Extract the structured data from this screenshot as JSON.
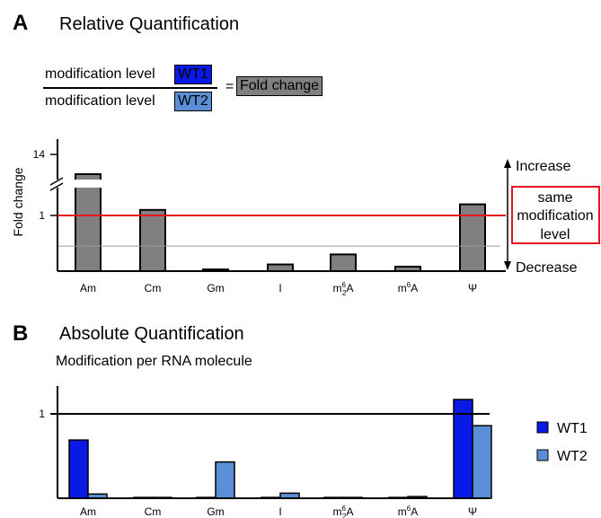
{
  "colors": {
    "wt1": "#0a1ae6",
    "wt2": "#5a8fd8",
    "grey": "#808080",
    "red": "#e8141e"
  },
  "panel_a": {
    "letter": "A",
    "title": "Relative Quantification",
    "formula": {
      "numerator_text": "modification level",
      "numerator_box": "WT1",
      "denominator_text": "modification level",
      "denominator_box": "WT2",
      "equals": "=",
      "result_box": "Fold change"
    },
    "ylabel": "Fold change",
    "increase_label": "Increase",
    "decrease_label": "Decrease",
    "same_level_lines": [
      "same",
      "modification",
      "level"
    ]
  },
  "panel_b": {
    "letter": "B",
    "title": "Absolute Quantification",
    "subtitle": "Modification per RNA molecule"
  },
  "chart_data": [
    {
      "type": "bar",
      "title": "Relative Quantification",
      "ylabel": "Fold change",
      "categories": [
        "Am",
        "Cm",
        "Gm",
        "I",
        "m⁶₂A",
        "m⁶A",
        "Ψ"
      ],
      "category_labels": [
        {
          "base": "Am",
          "sup": "",
          "sub": "",
          "tail": ""
        },
        {
          "base": "Cm",
          "sup": "",
          "sub": "",
          "tail": ""
        },
        {
          "base": "Gm",
          "sup": "",
          "sub": "",
          "tail": ""
        },
        {
          "base": "I",
          "sup": "",
          "sub": "",
          "tail": ""
        },
        {
          "base": "m",
          "sup": "6",
          "sub": "2",
          "tail": "A"
        },
        {
          "base": "m",
          "sup": "6",
          "sub": "",
          "tail": "A"
        },
        {
          "base": "Ψ",
          "sup": "",
          "sub": "",
          "tail": ""
        }
      ],
      "values": [
        13.6,
        1.1,
        0.03,
        0.12,
        0.3,
        0.08,
        1.2
      ],
      "yticks": [
        {
          "value": 1,
          "label": "1"
        },
        {
          "value": 14,
          "label": "14"
        }
      ],
      "axis_break": true,
      "reference_line": {
        "value": 1,
        "color": "#e8141e"
      },
      "secondary_line": 0.45
    },
    {
      "type": "bar",
      "title": "Absolute Quantification",
      "subtitle": "Modification per RNA molecule",
      "categories": [
        "Am",
        "Cm",
        "Gm",
        "I",
        "m⁶₂A",
        "m⁶A",
        "Ψ"
      ],
      "series": [
        {
          "name": "WT1",
          "values": [
            0.69,
            0.01,
            0.01,
            0.01,
            0.01,
            0.01,
            1.17
          ]
        },
        {
          "name": "WT2",
          "values": [
            0.05,
            0.01,
            0.43,
            0.06,
            0.01,
            0.02,
            0.86
          ]
        }
      ],
      "yticks": [
        {
          "value": 1,
          "label": "1"
        }
      ],
      "reference_line": {
        "value": 1,
        "color": "#000000"
      },
      "ylim": [
        0,
        1.4
      ],
      "legend": "right"
    }
  ]
}
